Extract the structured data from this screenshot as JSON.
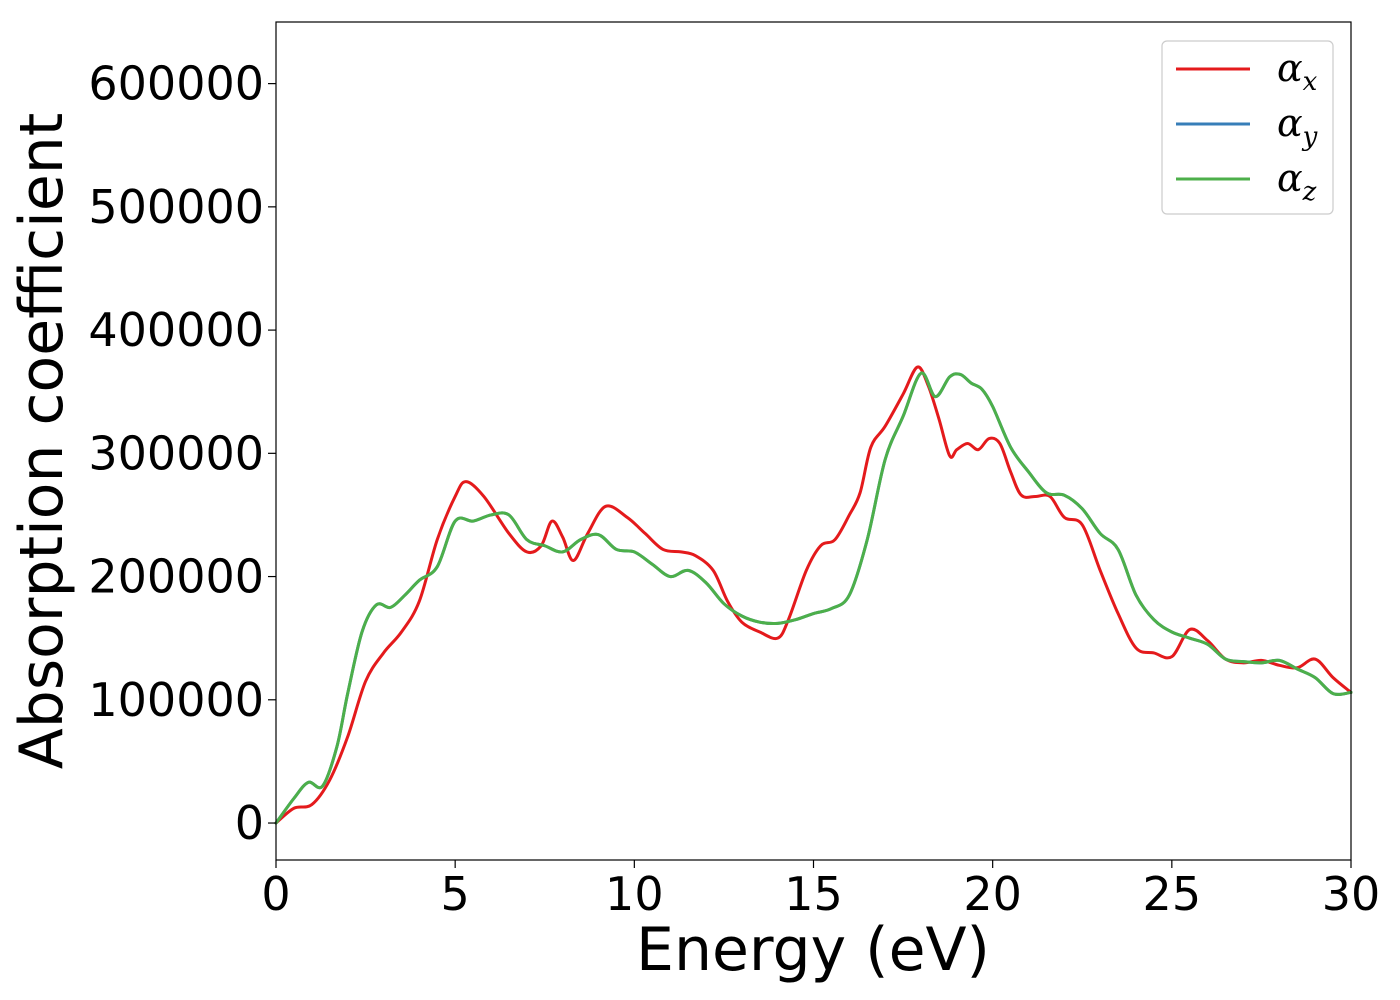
{
  "chart_data": {
    "type": "line",
    "title": "",
    "xlabel": "Energy (eV)",
    "ylabel": "Absorption coefficient",
    "xlim": [
      0,
      30
    ],
    "ylim": [
      -30000,
      650000
    ],
    "xticks": [
      0,
      5,
      10,
      15,
      20,
      25,
      30
    ],
    "xtick_labels": [
      "0",
      "5",
      "10",
      "15",
      "20",
      "25",
      "30"
    ],
    "yticks": [
      0,
      100000,
      200000,
      300000,
      400000,
      500000,
      600000
    ],
    "ytick_labels": [
      "0",
      "100000",
      "200000",
      "300000",
      "400000",
      "500000",
      "600000"
    ],
    "grid": false,
    "legend_position": "top-right",
    "series": [
      {
        "name": "α",
        "sub": "x",
        "color": "#e41a1c",
        "x": [
          0,
          0.5,
          1.0,
          1.5,
          2.0,
          2.5,
          3.0,
          3.5,
          4.0,
          4.5,
          5.0,
          5.3,
          5.8,
          6.5,
          7.0,
          7.4,
          7.7,
          8.0,
          8.3,
          8.7,
          9.2,
          9.8,
          10.3,
          10.8,
          11.3,
          11.7,
          12.2,
          12.6,
          13.0,
          13.5,
          14.0,
          14.3,
          14.8,
          15.2,
          15.6,
          16.0,
          16.3,
          16.6,
          17.0,
          17.5,
          17.9,
          18.2,
          18.5,
          18.8,
          19.0,
          19.3,
          19.6,
          19.9,
          20.2,
          20.5,
          20.8,
          21.2,
          21.6,
          22.0,
          22.5,
          23.0,
          23.5,
          24.0,
          24.5,
          25.0,
          25.5,
          26.0,
          26.5,
          27.0,
          27.5,
          28.0,
          28.5,
          29.0,
          29.5,
          30.0
        ],
        "y": [
          0,
          12000,
          15000,
          35000,
          70000,
          115000,
          138000,
          155000,
          180000,
          230000,
          265000,
          277000,
          265000,
          235000,
          220000,
          225000,
          245000,
          232000,
          213000,
          235000,
          257000,
          248000,
          235000,
          222000,
          220000,
          217000,
          205000,
          180000,
          163000,
          155000,
          150000,
          165000,
          205000,
          225000,
          230000,
          250000,
          268000,
          305000,
          322000,
          348000,
          370000,
          355000,
          328000,
          298000,
          303000,
          308000,
          303000,
          312000,
          308000,
          285000,
          266000,
          265000,
          265000,
          248000,
          242000,
          205000,
          170000,
          142000,
          138000,
          135000,
          157000,
          148000,
          133000,
          130000,
          132000,
          128000,
          126000,
          133000,
          118000,
          106000
        ]
      },
      {
        "name": "α",
        "sub": "y",
        "color": "#377eb8",
        "x": [
          0,
          0.5,
          0.9,
          1.3,
          1.7,
          2.0,
          2.4,
          2.8,
          3.2,
          3.6,
          4.0,
          4.5,
          5.0,
          5.5,
          6.0,
          6.5,
          7.0,
          7.5,
          8.0,
          8.5,
          9.0,
          9.5,
          10.0,
          10.5,
          11.0,
          11.5,
          12.0,
          12.5,
          13.0,
          13.5,
          14.0,
          14.5,
          15.0,
          15.5,
          16.0,
          16.5,
          17.0,
          17.5,
          18.0,
          18.4,
          18.8,
          19.1,
          19.4,
          19.7,
          20.0,
          20.5,
          21.0,
          21.5,
          22.0,
          22.5,
          23.0,
          23.5,
          24.0,
          24.5,
          25.0,
          25.5,
          26.0,
          26.5,
          27.0,
          27.5,
          28.0,
          28.5,
          29.0,
          29.5,
          30.0
        ],
        "y": [
          0,
          20000,
          33000,
          30000,
          62000,
          105000,
          155000,
          177000,
          175000,
          185000,
          197000,
          208000,
          245000,
          245000,
          250000,
          250000,
          230000,
          225000,
          220000,
          230000,
          234000,
          222000,
          220000,
          210000,
          200000,
          205000,
          195000,
          178000,
          168000,
          163000,
          162000,
          165000,
          170000,
          174000,
          185000,
          230000,
          295000,
          330000,
          365000,
          346000,
          362000,
          364000,
          357000,
          352000,
          338000,
          305000,
          285000,
          268000,
          266000,
          255000,
          235000,
          222000,
          185000,
          165000,
          155000,
          150000,
          145000,
          133000,
          131000,
          130000,
          132000,
          125000,
          118000,
          105000,
          106000
        ]
      },
      {
        "name": "α",
        "sub": "z",
        "color": "#4daf4a",
        "x": [
          0,
          0.5,
          0.9,
          1.3,
          1.7,
          2.0,
          2.4,
          2.8,
          3.2,
          3.6,
          4.0,
          4.5,
          5.0,
          5.5,
          6.0,
          6.5,
          7.0,
          7.5,
          8.0,
          8.5,
          9.0,
          9.5,
          10.0,
          10.5,
          11.0,
          11.5,
          12.0,
          12.5,
          13.0,
          13.5,
          14.0,
          14.5,
          15.0,
          15.5,
          16.0,
          16.5,
          17.0,
          17.5,
          18.0,
          18.4,
          18.8,
          19.1,
          19.4,
          19.7,
          20.0,
          20.5,
          21.0,
          21.5,
          22.0,
          22.5,
          23.0,
          23.5,
          24.0,
          24.5,
          25.0,
          25.5,
          26.0,
          26.5,
          27.0,
          27.5,
          28.0,
          28.5,
          29.0,
          29.5,
          30.0
        ],
        "y": [
          0,
          20000,
          33000,
          30000,
          62000,
          105000,
          155000,
          177000,
          175000,
          185000,
          197000,
          208000,
          245000,
          245000,
          250000,
          250000,
          230000,
          225000,
          220000,
          230000,
          234000,
          222000,
          220000,
          210000,
          200000,
          205000,
          195000,
          178000,
          168000,
          163000,
          162000,
          165000,
          170000,
          174000,
          185000,
          230000,
          295000,
          330000,
          365000,
          346000,
          362000,
          364000,
          357000,
          352000,
          338000,
          305000,
          285000,
          268000,
          266000,
          255000,
          235000,
          222000,
          185000,
          165000,
          155000,
          150000,
          145000,
          133000,
          131000,
          130000,
          132000,
          125000,
          118000,
          105000,
          106000
        ]
      }
    ]
  }
}
